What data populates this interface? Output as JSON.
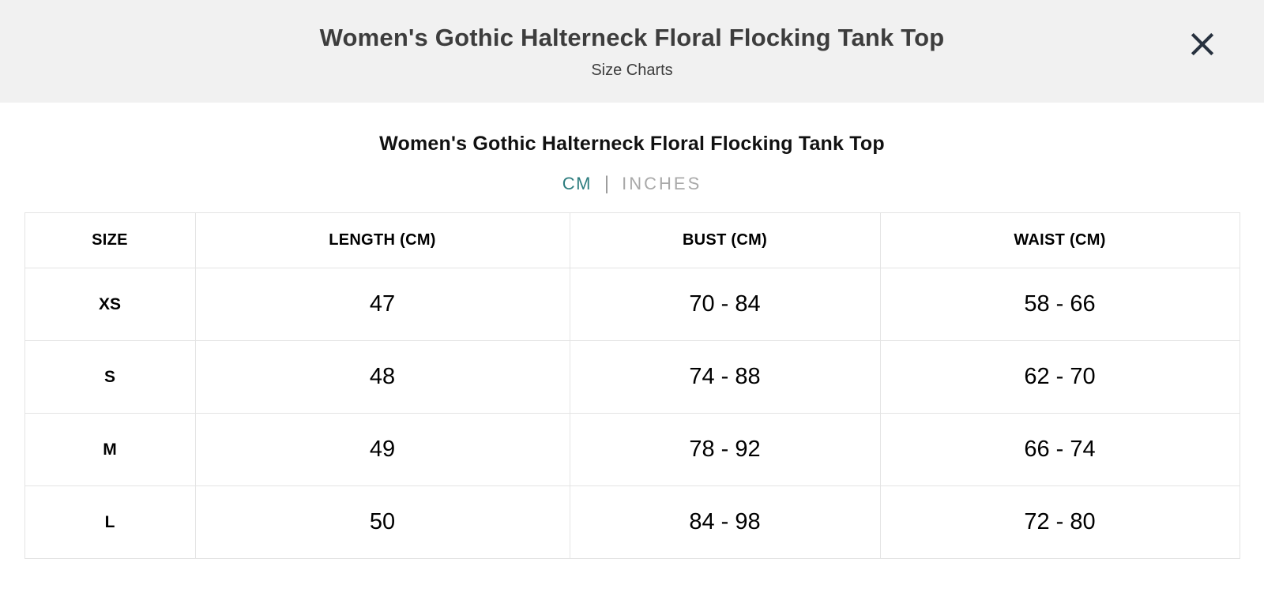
{
  "modal": {
    "title": "Women's Gothic Halterneck Floral Flocking Tank Top",
    "subtitle": "Size Charts",
    "close_button": {
      "icon": "close-x"
    }
  },
  "content": {
    "product_title": "Women's Gothic Halterneck Floral Flocking Tank Top",
    "unit_toggle": {
      "cm_label": "CM",
      "separator": "|",
      "inches_label": "INCHES",
      "selected": "CM"
    },
    "size_table": {
      "columns": [
        "SIZE",
        "LENGTH (CM)",
        "BUST (CM)",
        "WAIST (CM)"
      ],
      "rows": [
        [
          "XS",
          "47",
          "70 - 84",
          "58 - 66"
        ],
        [
          "S",
          "48",
          "74 - 88",
          "62 - 70"
        ],
        [
          "M",
          "49",
          "78 - 92",
          "66 - 74"
        ],
        [
          "L",
          "50",
          "84 - 98",
          "72 - 80"
        ]
      ]
    }
  },
  "colors": {
    "accent": "#2e7d7f",
    "header_bg": "#f1f1f1",
    "close_icon": "#27313e",
    "table_border": "#e4e4e4",
    "inactive_unit": "#a9a9a9"
  }
}
